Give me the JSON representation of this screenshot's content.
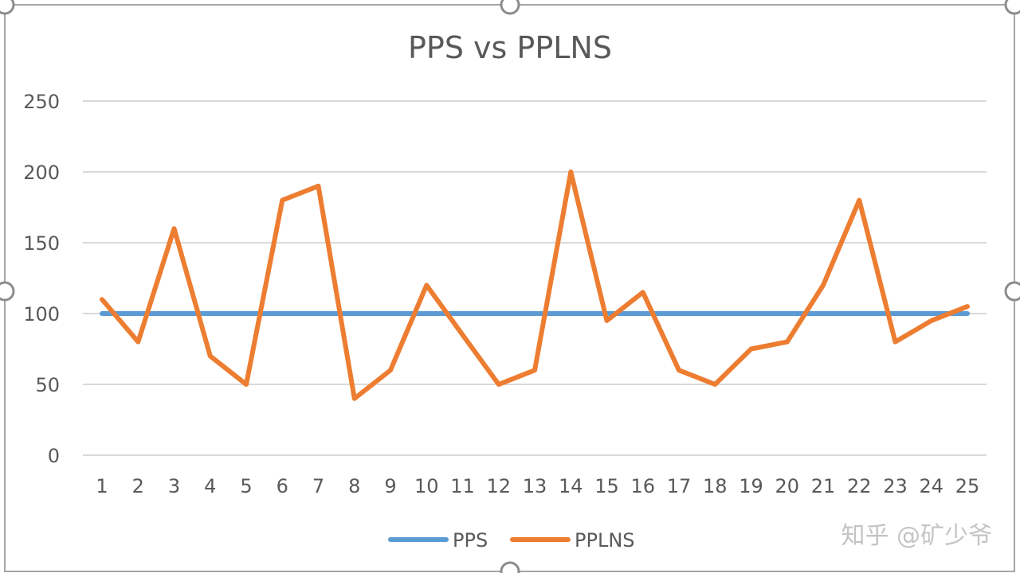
{
  "chart_data": {
    "type": "line",
    "title": "PPS vs PPLNS",
    "xlabel": "",
    "ylabel": "",
    "x": [
      "1",
      "2",
      "3",
      "4",
      "5",
      "6",
      "7",
      "8",
      "9",
      "10",
      "11",
      "12",
      "13",
      "14",
      "15",
      "16",
      "17",
      "18",
      "19",
      "20",
      "21",
      "22",
      "23",
      "24",
      "25"
    ],
    "ylim": [
      0,
      250
    ],
    "yticks": [
      "0",
      "50",
      "100",
      "150",
      "200",
      "250"
    ],
    "grid": "horizontal",
    "legend_position": "bottom",
    "series": [
      {
        "name": "PPS",
        "color": "#5b9bd5",
        "values": [
          100,
          100,
          100,
          100,
          100,
          100,
          100,
          100,
          100,
          100,
          100,
          100,
          100,
          100,
          100,
          100,
          100,
          100,
          100,
          100,
          100,
          100,
          100,
          100,
          100
        ]
      },
      {
        "name": "PPLNS",
        "color": "#ed7d31",
        "values": [
          110,
          80,
          160,
          70,
          50,
          180,
          190,
          40,
          60,
          120,
          85,
          50,
          60,
          200,
          95,
          115,
          60,
          50,
          75,
          80,
          120,
          180,
          80,
          95,
          105
        ]
      }
    ]
  },
  "watermark": "知乎 @矿少爷",
  "colors": {
    "gridline": "#d9d9d9",
    "frame": "#a6a6a6",
    "text": "#595959"
  }
}
